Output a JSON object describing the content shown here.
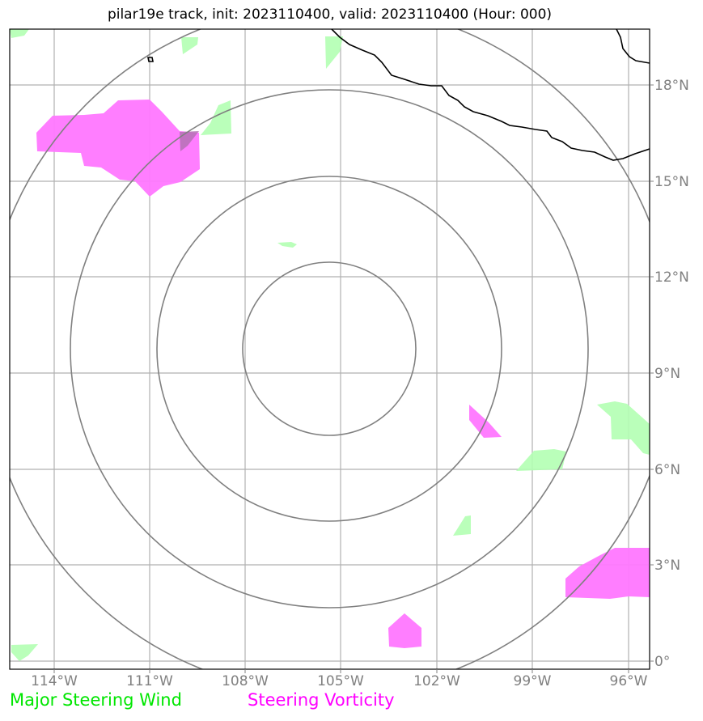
{
  "title": "pilar19e track, init: 2023110400, valid: 2023110400 (Hour: 000)",
  "lat_labels": [
    "18°N",
    "15°N",
    "12°N",
    "9°N",
    "6°N",
    "3°N",
    "0°"
  ],
  "lon_labels": [
    "114°W",
    "111°W",
    "108°W",
    "105°W",
    "102°W",
    "99°W",
    "96°W"
  ],
  "legend": {
    "wind_label": "Major Steering Wind",
    "vorticity_label": "Steering Vorticity"
  },
  "colors": {
    "wind_fill": "#b3ffb3",
    "vorticity_fill": "#ff77ff",
    "wind_text": "#00e600",
    "vorticity_text": "#ff00ff",
    "gridline": "#b0b0b0",
    "ring": "#808080",
    "coastline": "#000000"
  },
  "map": {
    "lon_range": [
      "115°W",
      "95°W"
    ],
    "lat_range": [
      "0°",
      "20°N"
    ],
    "range_rings_count": 4
  }
}
